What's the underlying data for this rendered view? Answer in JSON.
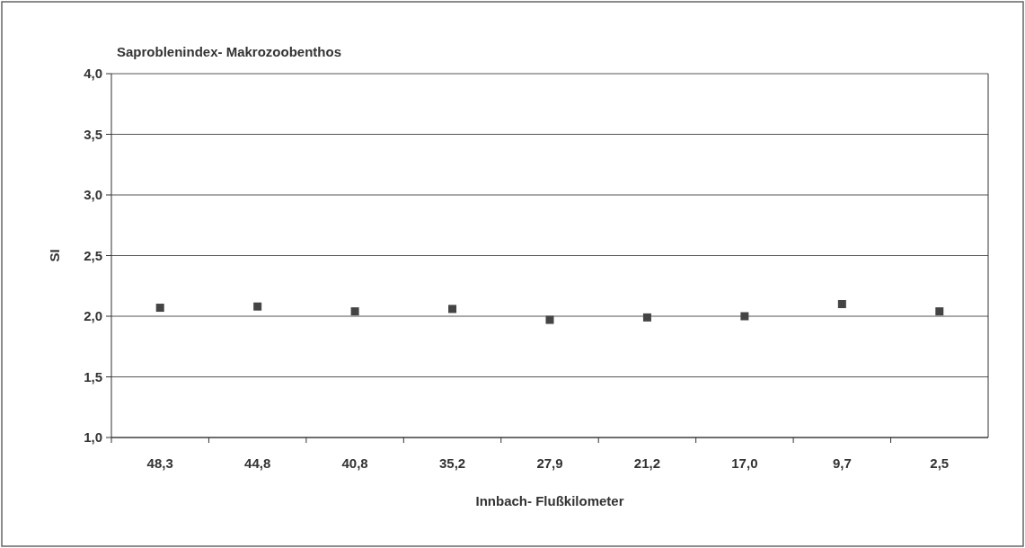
{
  "chart_data": {
    "type": "scatter",
    "title": "Saproblenindex- Makrozoobenthos",
    "xlabel": "Innbach- Flußkilometer",
    "ylabel": "SI",
    "categories": [
      "48,3",
      "44,8",
      "40,8",
      "35,2",
      "27,9",
      "21,2",
      "17,0",
      "9,7",
      "2,5"
    ],
    "values": [
      2.07,
      2.08,
      2.04,
      2.06,
      1.97,
      1.99,
      2.0,
      2.1,
      2.04
    ],
    "color": "#444444",
    "marker": "square",
    "grid": "y",
    "ylim": [
      1,
      4
    ],
    "yticks": [
      {
        "value": 1,
        "label": "1,0"
      },
      {
        "value": 1.5,
        "label": "1,5"
      },
      {
        "value": 2,
        "label": "2,0"
      },
      {
        "value": 2.5,
        "label": "2,5"
      },
      {
        "value": 3,
        "label": "3,0"
      },
      {
        "value": 3.5,
        "label": "3,5"
      },
      {
        "value": 4,
        "label": "4,0"
      }
    ]
  }
}
